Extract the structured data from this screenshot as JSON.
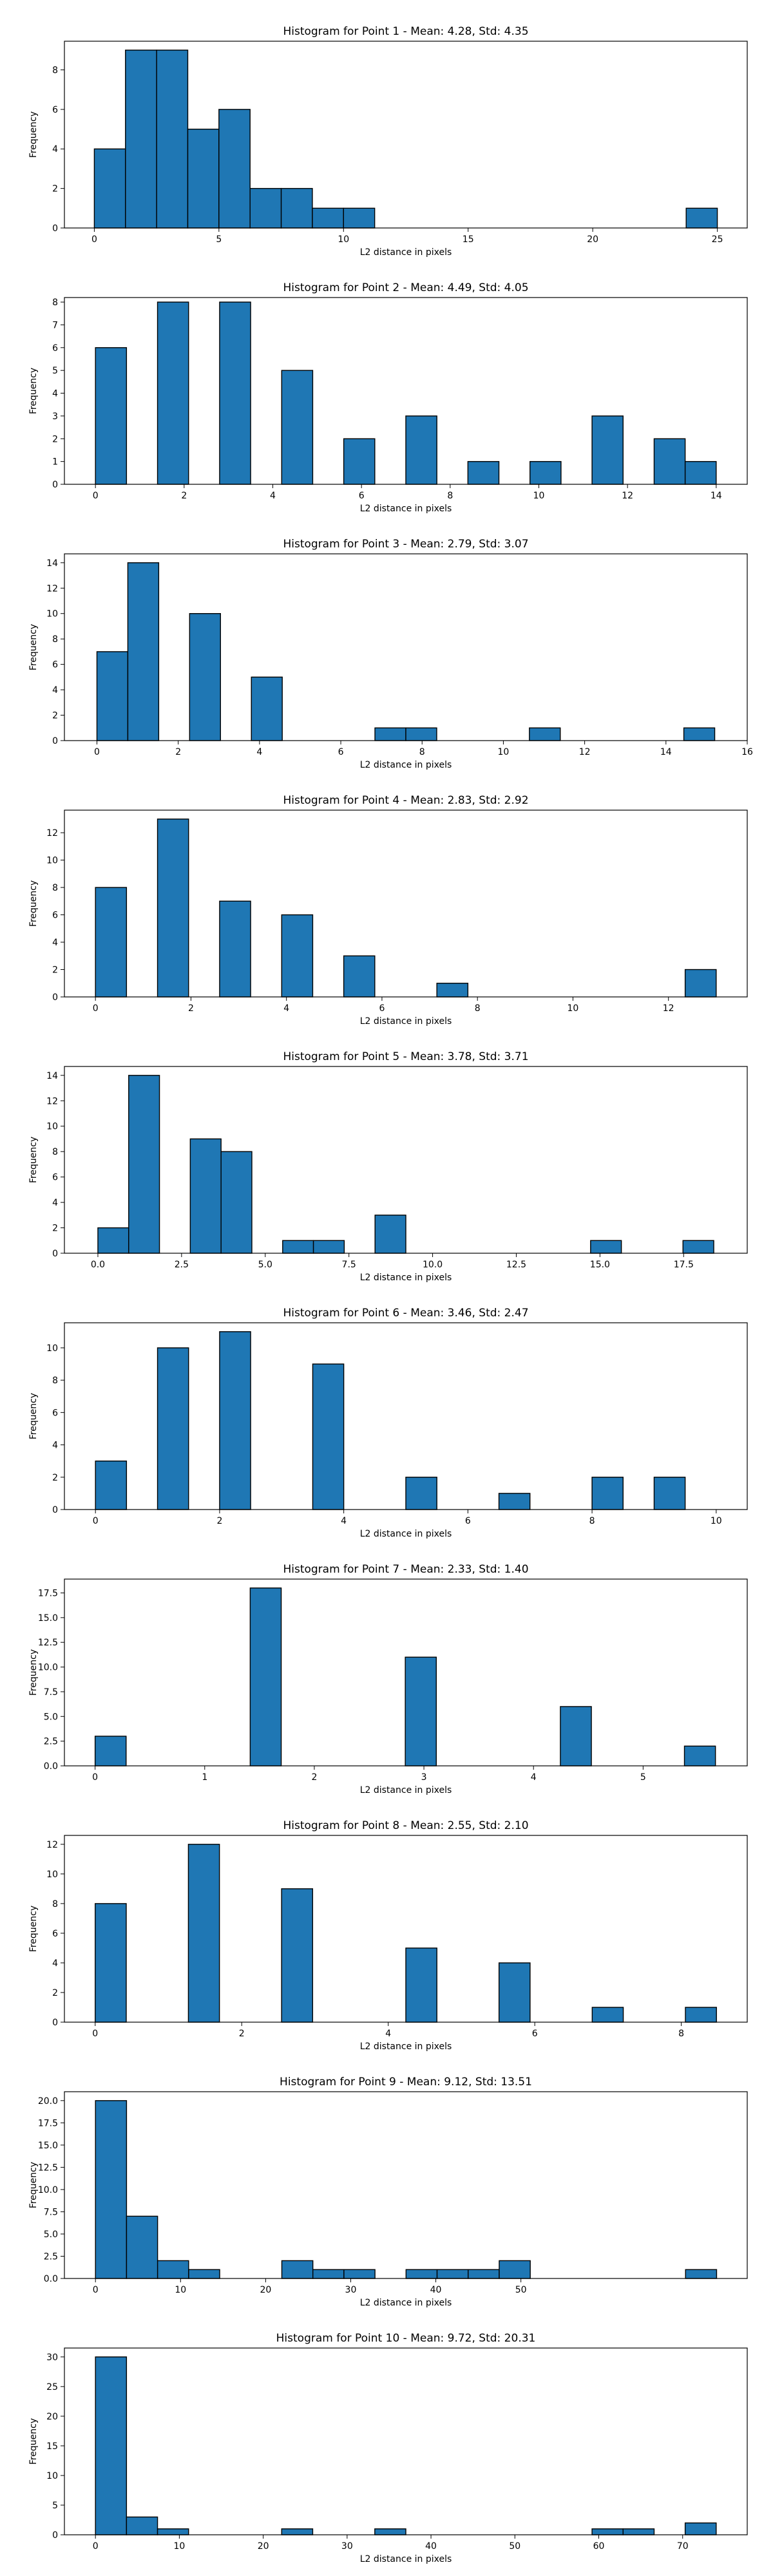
{
  "colors": {
    "bar_fill": "#1f77b4",
    "bar_edge": "#000000",
    "background": "#ffffff"
  },
  "chart_data": [
    {
      "type": "bar",
      "title": "Histogram for Point 1 - Mean: 4.28, Std: 4.35",
      "xlabel": "L2 distance in pixels",
      "ylabel": "Frequency",
      "xlim": [
        -1.2,
        26.2
      ],
      "ylim": [
        0,
        9.45
      ],
      "xticks": [
        0,
        5,
        10,
        15,
        20,
        25
      ],
      "xtick_labels": [
        "0",
        "5",
        "10",
        "15",
        "20",
        "25"
      ],
      "yticks": [
        0,
        2,
        4,
        6,
        8
      ],
      "grid": false,
      "bins": [
        {
          "x0": 0.0,
          "x1": 1.25,
          "value": 4
        },
        {
          "x0": 1.25,
          "x1": 2.5,
          "value": 9
        },
        {
          "x0": 2.5,
          "x1": 3.75,
          "value": 9
        },
        {
          "x0": 3.75,
          "x1": 5.0,
          "value": 5
        },
        {
          "x0": 5.0,
          "x1": 6.25,
          "value": 6
        },
        {
          "x0": 6.25,
          "x1": 7.5,
          "value": 2
        },
        {
          "x0": 7.5,
          "x1": 8.75,
          "value": 2
        },
        {
          "x0": 8.75,
          "x1": 10.0,
          "value": 1
        },
        {
          "x0": 10.0,
          "x1": 11.25,
          "value": 1
        },
        {
          "x0": 23.75,
          "x1": 25.0,
          "value": 1
        }
      ]
    },
    {
      "type": "bar",
      "title": "Histogram for Point 2 - Mean: 4.49, Std: 4.05",
      "xlabel": "L2 distance in pixels",
      "ylabel": "Frequency",
      "xlim": [
        -0.7,
        14.7
      ],
      "ylim": [
        0,
        8.2
      ],
      "xticks": [
        0,
        2,
        4,
        6,
        8,
        10,
        12,
        14
      ],
      "xtick_labels": [
        "0",
        "2",
        "4",
        "6",
        "8",
        "10",
        "12",
        "14"
      ],
      "yticks": [
        0,
        1,
        2,
        3,
        4,
        5,
        6,
        7,
        8
      ],
      "grid": false,
      "bins": [
        {
          "x0": 0.0,
          "x1": 0.7,
          "value": 6
        },
        {
          "x0": 1.4,
          "x1": 2.1,
          "value": 8
        },
        {
          "x0": 2.8,
          "x1": 3.5,
          "value": 8
        },
        {
          "x0": 4.2,
          "x1": 4.9,
          "value": 5
        },
        {
          "x0": 5.6,
          "x1": 6.3,
          "value": 2
        },
        {
          "x0": 7.0,
          "x1": 7.7,
          "value": 3
        },
        {
          "x0": 8.4,
          "x1": 9.1,
          "value": 1
        },
        {
          "x0": 9.8,
          "x1": 10.5,
          "value": 1
        },
        {
          "x0": 11.2,
          "x1": 11.9,
          "value": 3
        },
        {
          "x0": 12.6,
          "x1": 13.3,
          "value": 2
        },
        {
          "x0": 13.3,
          "x1": 14.0,
          "value": 1
        }
      ]
    },
    {
      "type": "bar",
      "title": "Histogram for Point 3 - Mean: 2.79, Std: 3.07",
      "xlabel": "L2 distance in pixels",
      "ylabel": "Frequency",
      "xlim": [
        -0.8,
        16.0
      ],
      "ylim": [
        0,
        14.7
      ],
      "xticks": [
        0,
        2,
        4,
        6,
        8,
        10,
        12,
        14,
        16
      ],
      "xtick_labels": [
        "0",
        "2",
        "4",
        "6",
        "8",
        "10",
        "12",
        "14",
        "16"
      ],
      "yticks": [
        0,
        2,
        4,
        6,
        8,
        10,
        12,
        14
      ],
      "grid": false,
      "bins": [
        {
          "x0": 0.0,
          "x1": 0.76,
          "value": 7
        },
        {
          "x0": 0.76,
          "x1": 1.52,
          "value": 14
        },
        {
          "x0": 2.28,
          "x1": 3.04,
          "value": 10
        },
        {
          "x0": 3.8,
          "x1": 4.56,
          "value": 5
        },
        {
          "x0": 6.84,
          "x1": 7.6,
          "value": 1
        },
        {
          "x0": 7.6,
          "x1": 8.36,
          "value": 1
        },
        {
          "x0": 10.64,
          "x1": 11.4,
          "value": 1
        },
        {
          "x0": 14.44,
          "x1": 15.2,
          "value": 1
        }
      ]
    },
    {
      "type": "bar",
      "title": "Histogram for Point 4 - Mean: 2.83, Std: 2.92",
      "xlabel": "L2 distance in pixels",
      "ylabel": "Frequency",
      "xlim": [
        -0.65,
        13.65
      ],
      "ylim": [
        0,
        13.65
      ],
      "xticks": [
        0,
        2,
        4,
        6,
        8,
        10,
        12
      ],
      "xtick_labels": [
        "0",
        "2",
        "4",
        "6",
        "8",
        "10",
        "12"
      ],
      "yticks": [
        0,
        2,
        4,
        6,
        8,
        10,
        12
      ],
      "grid": false,
      "bins": [
        {
          "x0": 0.0,
          "x1": 0.65,
          "value": 8
        },
        {
          "x0": 1.3,
          "x1": 1.95,
          "value": 13
        },
        {
          "x0": 2.6,
          "x1": 3.25,
          "value": 7
        },
        {
          "x0": 3.9,
          "x1": 4.55,
          "value": 6
        },
        {
          "x0": 5.2,
          "x1": 5.85,
          "value": 3
        },
        {
          "x0": 7.15,
          "x1": 7.8,
          "value": 1
        },
        {
          "x0": 12.35,
          "x1": 13.0,
          "value": 2
        }
      ]
    },
    {
      "type": "bar",
      "title": "Histogram for Point 5 - Mean: 3.78, Std: 3.71",
      "xlabel": "L2 distance in pixels",
      "ylabel": "Frequency",
      "xlim": [
        -1.0,
        19.4
      ],
      "ylim": [
        0,
        14.7
      ],
      "xticks": [
        0,
        2.5,
        5,
        7.5,
        10,
        12.5,
        15,
        17.5
      ],
      "xtick_labels": [
        "0.0",
        "2.5",
        "5.0",
        "7.5",
        "10.0",
        "12.5",
        "15.0",
        "17.5"
      ],
      "yticks": [
        0,
        2,
        4,
        6,
        8,
        10,
        12,
        14
      ],
      "grid": false,
      "bins": [
        {
          "x0": 0.0,
          "x1": 0.92,
          "value": 2
        },
        {
          "x0": 0.92,
          "x1": 1.84,
          "value": 14
        },
        {
          "x0": 2.76,
          "x1": 3.68,
          "value": 9
        },
        {
          "x0": 3.68,
          "x1": 4.6,
          "value": 8
        },
        {
          "x0": 5.52,
          "x1": 6.44,
          "value": 1
        },
        {
          "x0": 6.44,
          "x1": 7.36,
          "value": 1
        },
        {
          "x0": 8.28,
          "x1": 9.2,
          "value": 3
        },
        {
          "x0": 14.72,
          "x1": 15.64,
          "value": 1
        },
        {
          "x0": 17.48,
          "x1": 18.4,
          "value": 1
        }
      ]
    },
    {
      "type": "bar",
      "title": "Histogram for Point 6 - Mean: 3.46, Std: 2.47",
      "xlabel": "L2 distance in pixels",
      "ylabel": "Frequency",
      "xlim": [
        -0.5,
        10.5
      ],
      "ylim": [
        0,
        11.55
      ],
      "xticks": [
        0,
        2,
        4,
        6,
        8,
        10
      ],
      "xtick_labels": [
        "0",
        "2",
        "4",
        "6",
        "8",
        "10"
      ],
      "yticks": [
        0,
        2,
        4,
        6,
        8,
        10
      ],
      "grid": false,
      "bins": [
        {
          "x0": 0.0,
          "x1": 0.5,
          "value": 3
        },
        {
          "x0": 1.0,
          "x1": 1.5,
          "value": 10
        },
        {
          "x0": 2.0,
          "x1": 2.5,
          "value": 11
        },
        {
          "x0": 3.5,
          "x1": 4.0,
          "value": 9
        },
        {
          "x0": 5.0,
          "x1": 5.5,
          "value": 2
        },
        {
          "x0": 6.5,
          "x1": 7.0,
          "value": 1
        },
        {
          "x0": 8.0,
          "x1": 8.5,
          "value": 2
        },
        {
          "x0": 9.0,
          "x1": 9.5,
          "value": 2
        }
      ]
    },
    {
      "type": "bar",
      "title": "Histogram for Point 7 - Mean: 2.33, Std: 1.40",
      "xlabel": "L2 distance in pixels",
      "ylabel": "Frequency",
      "xlim": [
        -0.28,
        5.95
      ],
      "ylim": [
        0,
        18.9
      ],
      "xticks": [
        0,
        1,
        2,
        3,
        4,
        5
      ],
      "xtick_labels": [
        "0",
        "1",
        "2",
        "3",
        "4",
        "5"
      ],
      "yticks": [
        0,
        2.5,
        5,
        7.5,
        10,
        12.5,
        15,
        17.5
      ],
      "ytick_labels": [
        "0.0",
        "2.5",
        "5.0",
        "7.5",
        "10.0",
        "12.5",
        "15.0",
        "17.5"
      ],
      "grid": false,
      "bins": [
        {
          "x0": 0.0,
          "x1": 0.283,
          "value": 3
        },
        {
          "x0": 1.415,
          "x1": 1.698,
          "value": 18
        },
        {
          "x0": 2.83,
          "x1": 3.113,
          "value": 11
        },
        {
          "x0": 4.245,
          "x1": 4.528,
          "value": 6
        },
        {
          "x0": 5.377,
          "x1": 5.66,
          "value": 2
        }
      ]
    },
    {
      "type": "bar",
      "title": "Histogram for Point 8 - Mean: 2.55, Std: 2.10",
      "xlabel": "L2 distance in pixels",
      "ylabel": "Frequency",
      "xlim": [
        -0.42,
        8.9
      ],
      "ylim": [
        0,
        12.6
      ],
      "xticks": [
        0,
        2,
        4,
        6,
        8
      ],
      "xtick_labels": [
        "0",
        "2",
        "4",
        "6",
        "8"
      ],
      "yticks": [
        0,
        2,
        4,
        6,
        8,
        10,
        12
      ],
      "grid": false,
      "bins": [
        {
          "x0": 0.0,
          "x1": 0.424,
          "value": 8
        },
        {
          "x0": 1.272,
          "x1": 1.696,
          "value": 12
        },
        {
          "x0": 2.544,
          "x1": 2.968,
          "value": 9
        },
        {
          "x0": 4.24,
          "x1": 4.664,
          "value": 5
        },
        {
          "x0": 5.512,
          "x1": 5.936,
          "value": 4
        },
        {
          "x0": 6.784,
          "x1": 7.208,
          "value": 1
        },
        {
          "x0": 8.056,
          "x1": 8.48,
          "value": 1
        }
      ]
    },
    {
      "type": "bar",
      "title": "Histogram for Point 9 - Mean: 9.12, Std: 13.51",
      "xlabel": "L2 distance in pixels",
      "ylabel": "Frequency",
      "xlim": [
        -3.65,
        76.6
      ],
      "ylim": [
        0,
        21.0
      ],
      "xticks": [
        0,
        10,
        20,
        30,
        40,
        50
      ],
      "xtick_labels": [
        "0",
        "10",
        "20",
        "30",
        "40",
        "50"
      ],
      "yticks": [
        0,
        2.5,
        5,
        7.5,
        10,
        12.5,
        15,
        17.5,
        20
      ],
      "ytick_labels": [
        "0.0",
        "2.5",
        "5.0",
        "7.5",
        "10.0",
        "12.5",
        "15.0",
        "17.5",
        "20.0"
      ],
      "grid": false,
      "bins": [
        {
          "x0": 0.0,
          "x1": 3.65,
          "value": 20
        },
        {
          "x0": 3.65,
          "x1": 7.3,
          "value": 7
        },
        {
          "x0": 7.3,
          "x1": 10.95,
          "value": 2
        },
        {
          "x0": 10.95,
          "x1": 14.6,
          "value": 1
        },
        {
          "x0": 21.9,
          "x1": 25.55,
          "value": 2
        },
        {
          "x0": 25.55,
          "x1": 29.2,
          "value": 1
        },
        {
          "x0": 29.2,
          "x1": 32.85,
          "value": 1
        },
        {
          "x0": 36.5,
          "x1": 40.15,
          "value": 1
        },
        {
          "x0": 40.15,
          "x1": 43.8,
          "value": 1
        },
        {
          "x0": 43.8,
          "x1": 47.45,
          "value": 1
        },
        {
          "x0": 47.45,
          "x1": 51.1,
          "value": 2
        },
        {
          "x0": 69.35,
          "x1": 73.0,
          "value": 1
        }
      ]
    },
    {
      "type": "bar",
      "title": "Histogram for Point 10 - Mean: 9.72, Std: 20.31",
      "xlabel": "L2 distance in pixels",
      "ylabel": "Frequency",
      "xlim": [
        -3.7,
        77.7
      ],
      "ylim": [
        0,
        31.5
      ],
      "xticks": [
        0,
        10,
        20,
        30,
        40,
        50,
        60,
        70
      ],
      "xtick_labels": [
        "0",
        "10",
        "20",
        "30",
        "40",
        "50",
        "60",
        "70"
      ],
      "yticks": [
        0,
        5,
        10,
        15,
        20,
        25,
        30
      ],
      "grid": false,
      "bins": [
        {
          "x0": 0.0,
          "x1": 3.7,
          "value": 30
        },
        {
          "x0": 3.7,
          "x1": 7.4,
          "value": 3
        },
        {
          "x0": 7.4,
          "x1": 11.1,
          "value": 1
        },
        {
          "x0": 22.2,
          "x1": 25.9,
          "value": 1
        },
        {
          "x0": 33.3,
          "x1": 37.0,
          "value": 1
        },
        {
          "x0": 59.2,
          "x1": 62.9,
          "value": 1
        },
        {
          "x0": 62.9,
          "x1": 66.6,
          "value": 1
        },
        {
          "x0": 70.3,
          "x1": 74.0,
          "value": 2
        }
      ]
    }
  ]
}
